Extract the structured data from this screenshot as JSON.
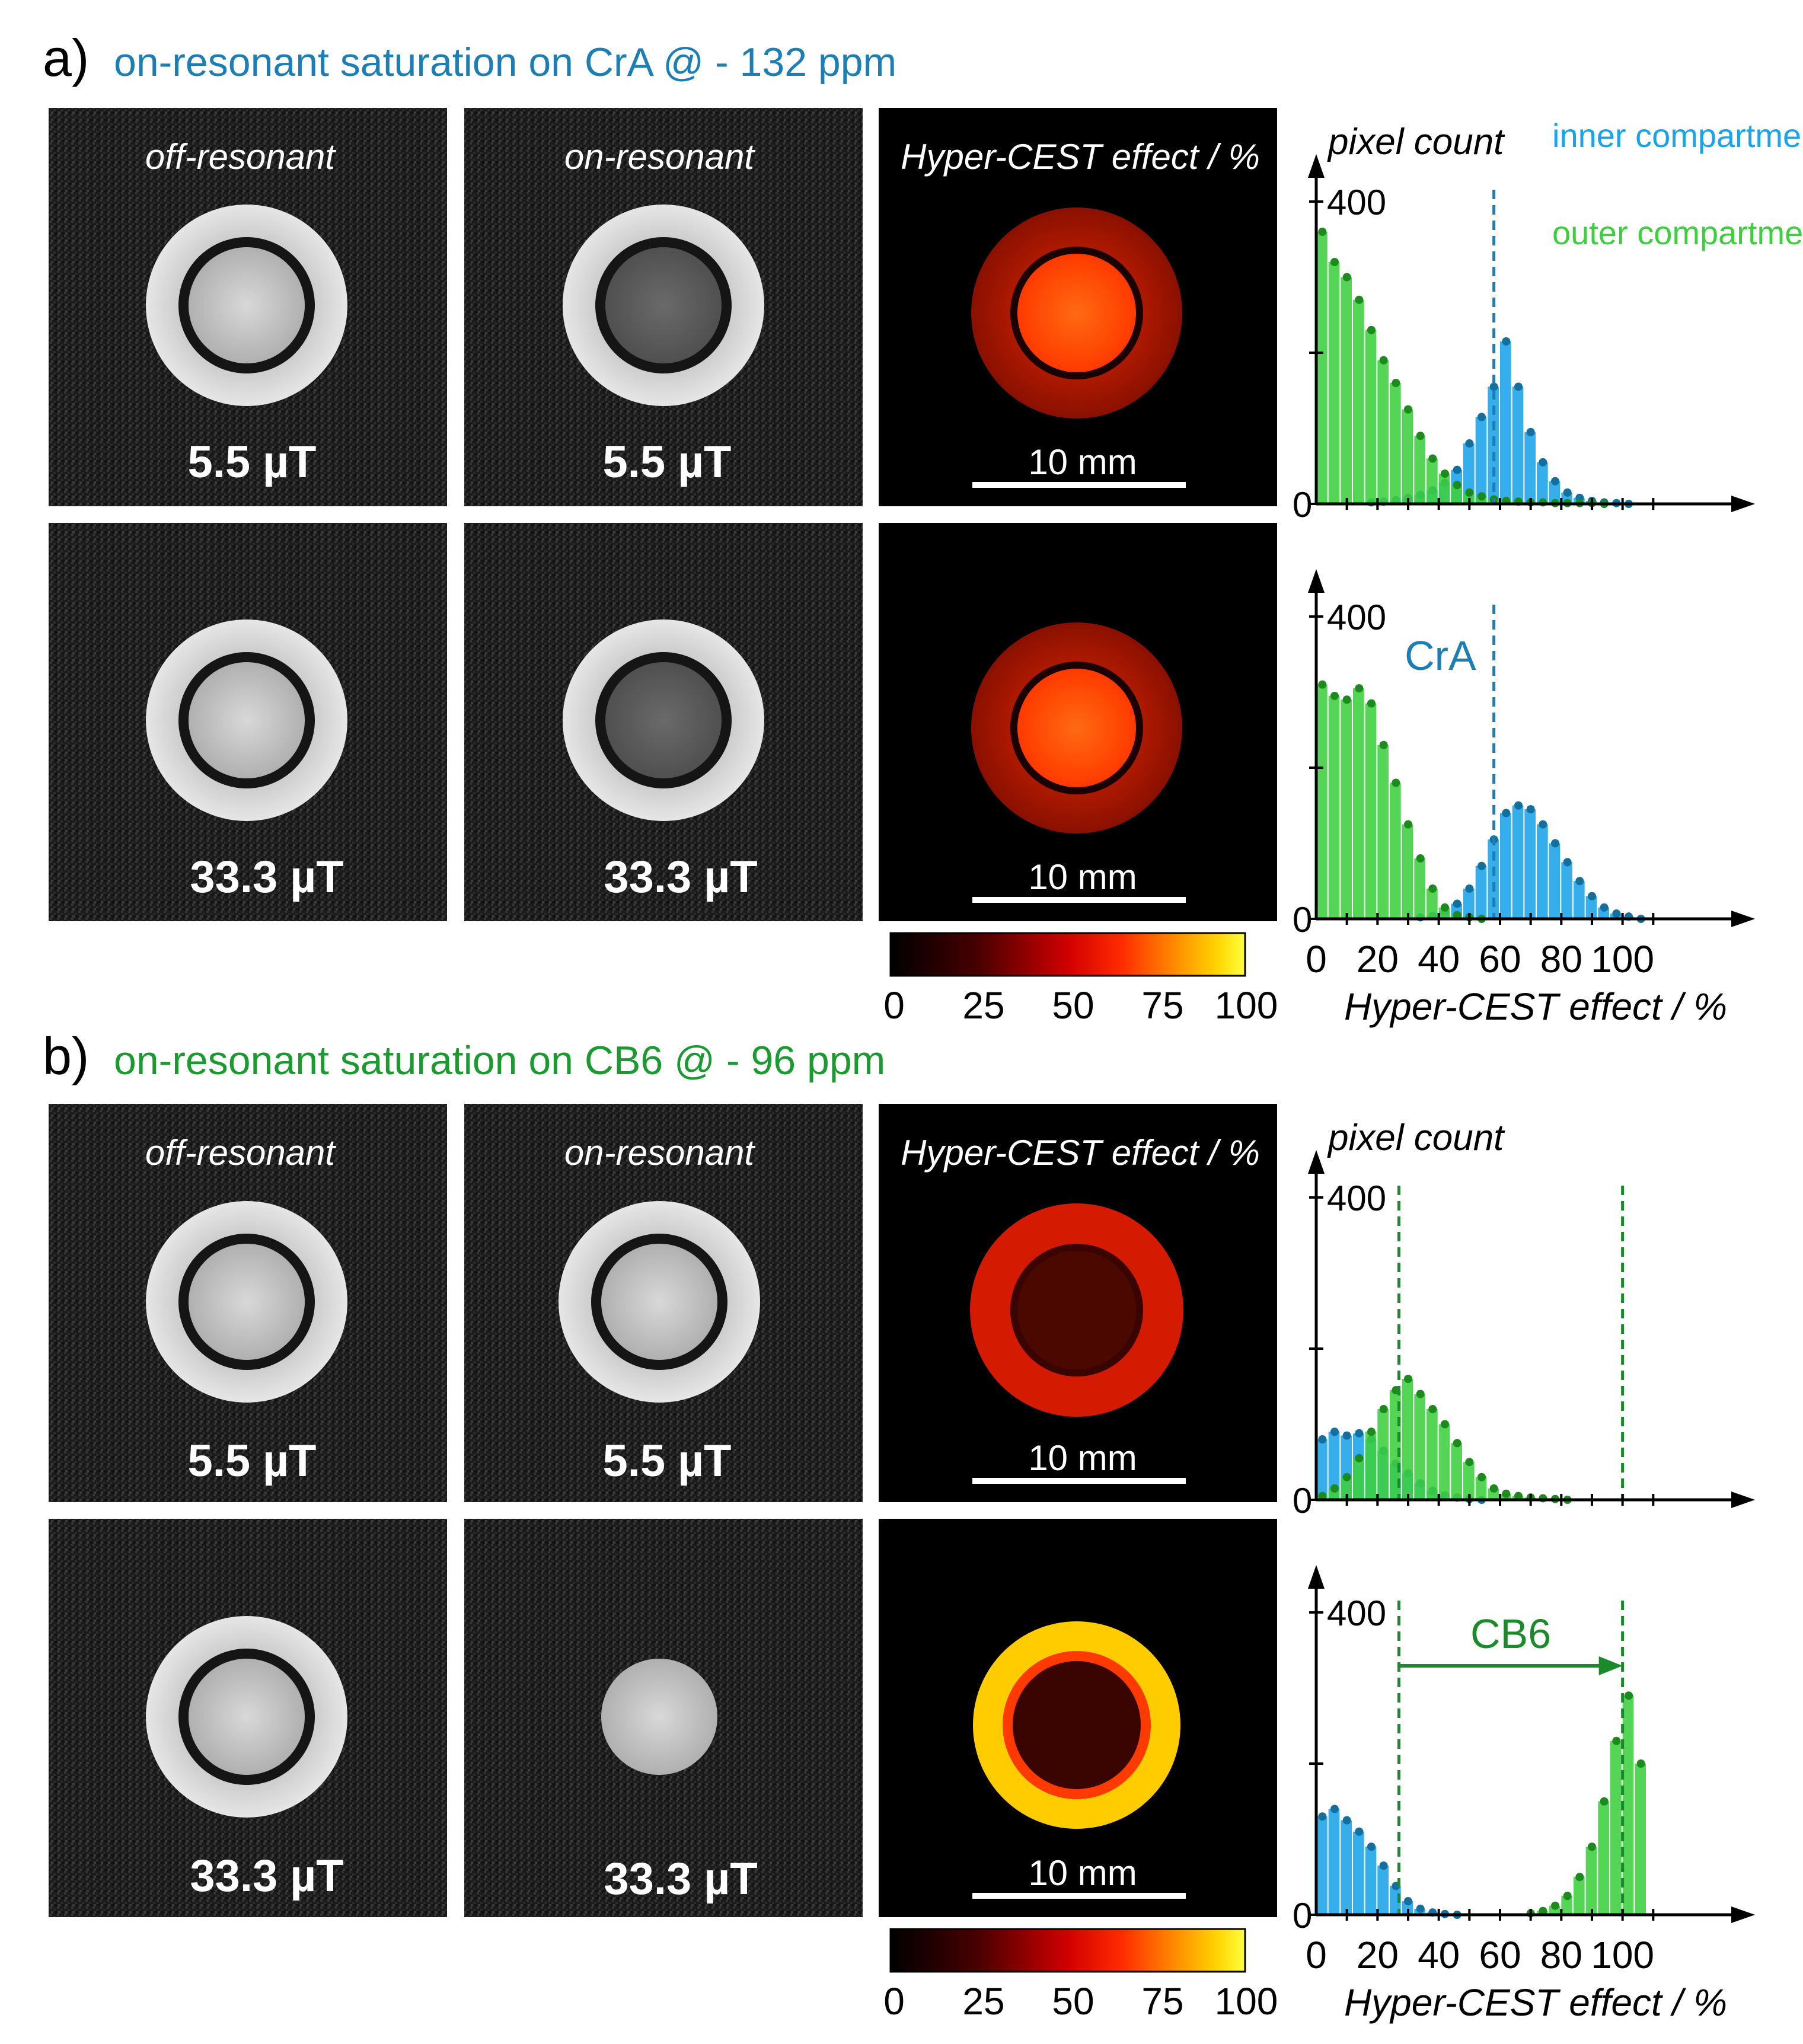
{
  "colors": {
    "inner_blue": "#1aa3e8",
    "outer_green": "#3ecf3e",
    "title_blue": "#1b7fb5",
    "title_green": "#1a9a2f",
    "cra_line": "#1b7fb5",
    "cb6_line": "#1a8a2a"
  },
  "panel_a": {
    "letter": "a)",
    "title": "on-resonant saturation on CrA @ - 132 ppm",
    "col_off": "off-resonant",
    "col_on": "on-resonant",
    "col_map": "Hyper-CEST effect / %",
    "field_top": "5.5 µT",
    "field_bottom": "33.3 µT",
    "scale_bar": "10 mm",
    "colorbar_ticks": [
      "0",
      "25",
      "50",
      "75",
      "100"
    ],
    "marker_label": "CrA"
  },
  "panel_b": {
    "letter": "b)",
    "title": "on-resonant saturation on CB6 @ - 96 ppm",
    "col_off": "off-resonant",
    "col_on": "on-resonant",
    "col_map": "Hyper-CEST effect / %",
    "field_top": "5.5 µT",
    "field_bottom": "33.3 µT",
    "scale_bar": "10 mm",
    "colorbar_ticks": [
      "0",
      "25",
      "50",
      "75",
      "100"
    ],
    "marker_label": "CB6"
  },
  "legend": {
    "inner": "inner compartment",
    "outer": "outer compartment"
  },
  "chart_data": [
    {
      "id": "a_top",
      "type": "bar",
      "title": "",
      "panel": "a",
      "field": "5.5 µT",
      "ylabel": "pixel count",
      "xlabel": "Hyper-CEST effect / %",
      "xlim": [
        0,
        120
      ],
      "ylim": [
        0,
        400
      ],
      "yticks": [
        0,
        200,
        400
      ],
      "marker": {
        "x": 58,
        "color_key": "cra_line"
      },
      "series": [
        {
          "name": "inner compartment",
          "color_key": "inner_blue",
          "x": [
            16,
            20,
            24,
            28,
            32,
            36,
            40,
            44,
            48,
            52,
            56,
            60,
            64,
            68,
            72,
            76,
            80,
            84,
            88,
            92,
            96,
            100
          ],
          "values": [
            2,
            3,
            5,
            8,
            12,
            18,
            28,
            45,
            80,
            115,
            155,
            215,
            155,
            95,
            55,
            30,
            15,
            8,
            4,
            2,
            1,
            0
          ]
        },
        {
          "name": "outer compartment",
          "color_key": "outer_green",
          "x": [
            0,
            4,
            8,
            12,
            16,
            20,
            24,
            28,
            32,
            36,
            40,
            44,
            48,
            52,
            56,
            60,
            64,
            68,
            72,
            76,
            80,
            84,
            88,
            92
          ],
          "values": [
            360,
            320,
            300,
            270,
            230,
            190,
            160,
            125,
            90,
            60,
            40,
            25,
            15,
            10,
            6,
            4,
            3,
            2,
            2,
            1,
            1,
            1,
            1,
            0
          ]
        }
      ]
    },
    {
      "id": "a_bottom",
      "type": "bar",
      "title": "",
      "panel": "a",
      "field": "33.3 µT",
      "ylabel": "pixel count",
      "xlabel": "Hyper-CEST effect / %",
      "xlim": [
        0,
        120
      ],
      "ylim": [
        0,
        400
      ],
      "yticks": [
        0,
        200,
        400
      ],
      "xticks": [
        0,
        20,
        40,
        60,
        80,
        100
      ],
      "marker": {
        "x": 58,
        "color_key": "cra_line"
      },
      "series": [
        {
          "name": "inner compartment",
          "color_key": "inner_blue",
          "x": [
            32,
            36,
            40,
            44,
            48,
            52,
            56,
            60,
            64,
            68,
            72,
            76,
            80,
            84,
            88,
            92,
            96,
            100,
            104
          ],
          "values": [
            2,
            4,
            10,
            20,
            40,
            70,
            105,
            140,
            150,
            145,
            125,
            100,
            75,
            50,
            30,
            15,
            7,
            3,
            0
          ]
        },
        {
          "name": "outer compartment",
          "color_key": "outer_green",
          "x": [
            0,
            4,
            8,
            12,
            16,
            20,
            24,
            28,
            32,
            36,
            40,
            44,
            48,
            52
          ],
          "values": [
            310,
            295,
            290,
            305,
            285,
            230,
            180,
            125,
            80,
            40,
            15,
            5,
            2,
            0
          ]
        }
      ]
    },
    {
      "id": "b_top",
      "type": "bar",
      "title": "",
      "panel": "b",
      "field": "5.5 µT",
      "ylabel": "pixel count",
      "xlabel": "Hyper-CEST effect / %",
      "xlim": [
        0,
        120
      ],
      "ylim": [
        0,
        400
      ],
      "yticks": [
        0,
        200,
        400
      ],
      "markers": [
        {
          "x": 27,
          "color_key": "cb6_line"
        },
        {
          "x": 100,
          "color_key": "cb6_line"
        }
      ],
      "series": [
        {
          "name": "inner compartment",
          "color_key": "inner_blue",
          "x": [
            0,
            4,
            8,
            12,
            16,
            20,
            24,
            28,
            32,
            36,
            40,
            44,
            48,
            52
          ],
          "values": [
            80,
            90,
            85,
            88,
            80,
            65,
            48,
            35,
            22,
            12,
            6,
            3,
            1,
            0
          ]
        },
        {
          "name": "outer compartment",
          "color_key": "outer_green",
          "x": [
            0,
            4,
            8,
            12,
            16,
            20,
            24,
            28,
            32,
            36,
            40,
            44,
            48,
            52,
            56,
            60,
            64,
            68,
            72,
            76,
            80
          ],
          "values": [
            5,
            15,
            30,
            55,
            90,
            120,
            145,
            160,
            140,
            120,
            100,
            75,
            50,
            30,
            15,
            8,
            5,
            3,
            2,
            1,
            0
          ]
        }
      ]
    },
    {
      "id": "b_bottom",
      "type": "bar",
      "title": "",
      "panel": "b",
      "field": "33.3 µT",
      "ylabel": "pixel count",
      "xlabel": "Hyper-CEST effect / %",
      "xlim": [
        0,
        120
      ],
      "ylim": [
        0,
        400
      ],
      "yticks": [
        0,
        200,
        400
      ],
      "xticks": [
        0,
        20,
        40,
        60,
        80,
        100
      ],
      "markers": [
        {
          "x": 27,
          "color_key": "cb6_line"
        },
        {
          "x": 100,
          "color_key": "cb6_line"
        }
      ],
      "arrow": {
        "from": 27,
        "to": 100,
        "label_ref": "panel_b.marker_label"
      },
      "series": [
        {
          "name": "inner compartment",
          "color_key": "inner_blue",
          "x": [
            0,
            4,
            8,
            12,
            16,
            20,
            24,
            28,
            32,
            36,
            40,
            44
          ],
          "values": [
            130,
            140,
            125,
            110,
            90,
            65,
            38,
            18,
            8,
            3,
            1,
            0
          ]
        },
        {
          "name": "outer compartment",
          "color_key": "outer_green",
          "x": [
            68,
            72,
            76,
            80,
            84,
            88,
            92,
            96,
            100,
            104
          ],
          "values": [
            2,
            5,
            12,
            25,
            50,
            90,
            150,
            230,
            290,
            200
          ]
        }
      ]
    }
  ]
}
